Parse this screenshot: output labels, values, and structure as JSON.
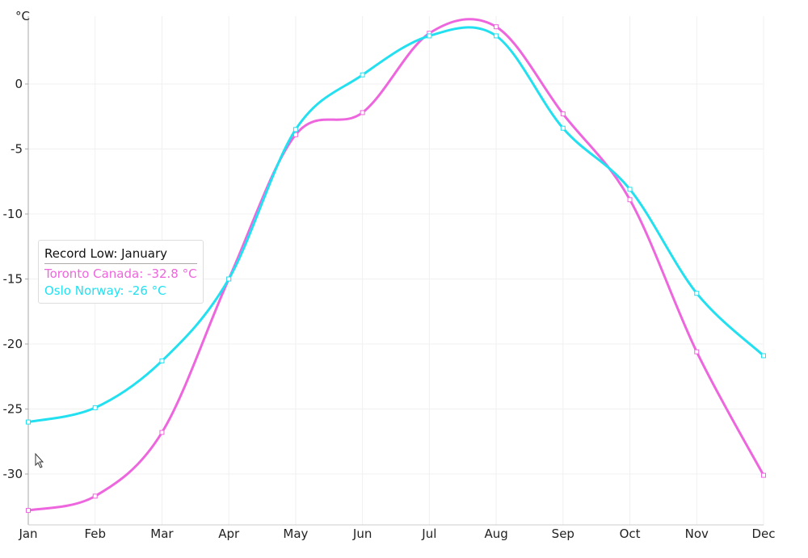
{
  "chart_data": {
    "type": "line",
    "title": "",
    "ylabel": "°C",
    "xlabel": "",
    "categories": [
      "Jan",
      "Feb",
      "Mar",
      "Apr",
      "May",
      "Jun",
      "Jul",
      "Aug",
      "Sep",
      "Oct",
      "Nov",
      "Dec"
    ],
    "yticks": [
      0,
      -5,
      -10,
      -15,
      -20,
      -25,
      -30
    ],
    "ylim": [
      -33.5,
      5.2
    ],
    "grid": true,
    "smooth": true,
    "series": [
      {
        "name": "Toronto Canada",
        "color": "#ee66dd",
        "values": [
          -32.8,
          -31.7,
          -26.8,
          -15.0,
          -3.9,
          -2.2,
          3.9,
          4.4,
          -2.3,
          -8.9,
          -20.6,
          -30.1
        ]
      },
      {
        "name": "Oslo Norway",
        "color": "#22e0f0",
        "values": [
          -26,
          -24.9,
          -21.3,
          -15.0,
          -3.5,
          0.7,
          3.7,
          3.7,
          -3.4,
          -8.1,
          -16.1,
          -20.9
        ]
      }
    ]
  },
  "tooltip": {
    "title": "Record Low: January",
    "lines": [
      "Toronto Canada: -32.8 °C",
      "Oslo Norway: -26 °C"
    ]
  }
}
